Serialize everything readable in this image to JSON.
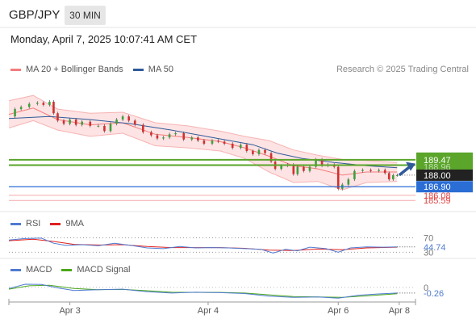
{
  "header": {
    "symbol": "GBP/JPY",
    "timeframe": "30 MIN",
    "datetime": "Monday, April 7, 2025 10:07:41 AM CET"
  },
  "credit": "Research © 2025 Trading Central",
  "colors": {
    "bollinger": "#f47c7c",
    "bollinger_fill": "#fde3e3",
    "ma50": "#2f5a9a",
    "price_up": "#3f9f3f",
    "price_down": "#d03030",
    "resistance": "#5aa52a",
    "support_blue": "#2a6dd4",
    "support_red": "#f06a6a",
    "rsi": "#4f7bd0",
    "rsi_ma": "#e02020",
    "macd": "#4f7bd0",
    "macd_signal": "#4ba71a"
  },
  "chart_data": [
    {
      "type": "line",
      "panel": "price",
      "legend": [
        "MA 20 + Bollinger Bands",
        "MA 50"
      ],
      "x_ticks": [
        "Apr 3",
        "Apr 4",
        "Apr 6",
        "Apr 8"
      ],
      "levels": {
        "resistance": [
          {
            "value": 189.47,
            "label": "189.47"
          },
          {
            "value": 188.96,
            "label": "188.96"
          }
        ],
        "current": {
          "value": 188.0,
          "label": "188.00"
        },
        "support": [
          {
            "value": 186.9,
            "label": "186.90"
          },
          {
            "value": 186.08,
            "label": "186.08"
          },
          {
            "value": 185.59,
            "label": "185.59"
          }
        ]
      },
      "ylim": [
        185.3,
        197.0
      ],
      "x_range": [
        0,
        100
      ],
      "x_tick_positions": [
        15,
        49,
        81,
        96
      ],
      "price_path": [
        [
          0,
          193.6
        ],
        [
          1.5,
          194.3
        ],
        [
          3,
          194.5
        ],
        [
          5,
          194.8
        ],
        [
          7,
          194.9
        ],
        [
          8.5,
          194.7
        ],
        [
          10,
          195.0
        ],
        [
          11,
          193.9
        ],
        [
          12,
          193.2
        ],
        [
          13.5,
          192.9
        ],
        [
          15,
          193.3
        ],
        [
          16.5,
          192.8
        ],
        [
          18,
          193.1
        ],
        [
          20,
          192.7
        ],
        [
          22,
          192.7
        ],
        [
          23.5,
          192.2
        ],
        [
          25,
          192.9
        ],
        [
          26.5,
          193.3
        ],
        [
          28,
          193.6
        ],
        [
          29.5,
          193.2
        ],
        [
          31,
          192.8
        ],
        [
          33,
          192.1
        ],
        [
          35,
          191.8
        ],
        [
          36.5,
          191.5
        ],
        [
          38,
          191.6
        ],
        [
          39.5,
          191.9
        ],
        [
          41,
          192.0
        ],
        [
          43,
          191.4
        ],
        [
          45,
          191.6
        ],
        [
          46.5,
          191.3
        ],
        [
          48,
          191.0
        ],
        [
          50,
          191.3
        ],
        [
          51.5,
          191.2
        ],
        [
          53,
          191.0
        ],
        [
          55,
          190.6
        ],
        [
          57,
          190.9
        ],
        [
          58.5,
          190.3
        ],
        [
          60,
          190.0
        ],
        [
          61.5,
          190.4
        ],
        [
          63,
          190.1
        ],
        [
          64.5,
          189.3
        ],
        [
          65.5,
          188.6
        ],
        [
          67,
          188.9
        ],
        [
          68.5,
          189.0
        ],
        [
          70,
          188.1
        ],
        [
          71,
          188.8
        ],
        [
          72.5,
          188.4
        ],
        [
          74,
          188.8
        ],
        [
          75.5,
          189.5
        ],
        [
          77,
          188.9
        ],
        [
          78.5,
          189.0
        ],
        [
          80,
          188.8
        ],
        [
          81,
          186.7
        ],
        [
          82,
          187.1
        ],
        [
          83.5,
          187.6
        ],
        [
          85,
          188.4
        ],
        [
          87,
          188.5
        ],
        [
          89,
          188.4
        ],
        [
          91,
          188.5
        ],
        [
          92.5,
          188.2
        ],
        [
          93.5,
          187.6
        ],
        [
          94.5,
          188.0
        ],
        [
          95.5,
          188.0
        ]
      ],
      "bb_upper": [
        [
          0,
          195.1
        ],
        [
          6,
          195.6
        ],
        [
          12,
          194.3
        ],
        [
          20,
          193.9
        ],
        [
          28,
          194.0
        ],
        [
          36,
          193.0
        ],
        [
          44,
          192.7
        ],
        [
          52,
          192.2
        ],
        [
          58,
          191.7
        ],
        [
          64,
          191.3
        ],
        [
          70,
          190.4
        ],
        [
          76,
          189.9
        ],
        [
          82,
          189.5
        ],
        [
          88,
          189.4
        ],
        [
          95.5,
          189.2
        ]
      ],
      "bb_lower": [
        [
          0,
          192.5
        ],
        [
          6,
          193.2
        ],
        [
          12,
          192.3
        ],
        [
          20,
          191.7
        ],
        [
          28,
          192.0
        ],
        [
          36,
          190.8
        ],
        [
          44,
          190.6
        ],
        [
          52,
          190.3
        ],
        [
          58,
          189.6
        ],
        [
          64,
          188.3
        ],
        [
          70,
          187.3
        ],
        [
          76,
          187.4
        ],
        [
          82,
          186.6
        ],
        [
          88,
          187.3
        ],
        [
          95.5,
          187.4
        ]
      ],
      "ma20": [
        [
          0,
          193.8
        ],
        [
          6,
          194.4
        ],
        [
          12,
          193.3
        ],
        [
          20,
          192.8
        ],
        [
          28,
          193.0
        ],
        [
          36,
          191.9
        ],
        [
          44,
          191.6
        ],
        [
          52,
          191.2
        ],
        [
          58,
          190.6
        ],
        [
          64,
          189.8
        ],
        [
          70,
          188.9
        ],
        [
          76,
          188.6
        ],
        [
          82,
          188.0
        ],
        [
          88,
          188.3
        ],
        [
          95.5,
          188.3
        ]
      ],
      "ma50": [
        [
          0,
          193.4
        ],
        [
          10,
          193.6
        ],
        [
          20,
          193.3
        ],
        [
          30,
          192.9
        ],
        [
          40,
          192.3
        ],
        [
          50,
          191.6
        ],
        [
          60,
          190.9
        ],
        [
          66,
          190.1
        ],
        [
          72,
          189.6
        ],
        [
          80,
          189.2
        ],
        [
          88,
          188.9
        ],
        [
          95.5,
          188.7
        ]
      ],
      "forecast": [
        [
          96,
          188.0
        ],
        [
          100,
          189.1
        ]
      ]
    },
    {
      "type": "line",
      "panel": "rsi",
      "legend": [
        "RSI",
        "9MA"
      ],
      "levels": [
        {
          "value": 70,
          "label": "70"
        },
        {
          "value": 30,
          "label": "30"
        }
      ],
      "current": {
        "value": 44.74,
        "label": "44.74"
      },
      "ylim": [
        22,
        80
      ],
      "rsi": [
        [
          0,
          64
        ],
        [
          4,
          68
        ],
        [
          8,
          69
        ],
        [
          11,
          55
        ],
        [
          14,
          49
        ],
        [
          18,
          51
        ],
        [
          22,
          48
        ],
        [
          26,
          55
        ],
        [
          30,
          49
        ],
        [
          34,
          42
        ],
        [
          38,
          40
        ],
        [
          42,
          46
        ],
        [
          46,
          42
        ],
        [
          50,
          43
        ],
        [
          54,
          42
        ],
        [
          58,
          40
        ],
        [
          62,
          38
        ],
        [
          65,
          28
        ],
        [
          68,
          38
        ],
        [
          71,
          34
        ],
        [
          74,
          44
        ],
        [
          78,
          40
        ],
        [
          81,
          30
        ],
        [
          84,
          42
        ],
        [
          88,
          45
        ],
        [
          92,
          44
        ],
        [
          95.5,
          44.74
        ]
      ],
      "rsi_ma": [
        [
          0,
          62
        ],
        [
          6,
          66
        ],
        [
          11,
          60
        ],
        [
          16,
          52
        ],
        [
          22,
          50
        ],
        [
          28,
          51
        ],
        [
          34,
          46
        ],
        [
          40,
          43
        ],
        [
          46,
          43
        ],
        [
          52,
          43
        ],
        [
          58,
          41
        ],
        [
          64,
          36
        ],
        [
          70,
          35
        ],
        [
          76,
          39
        ],
        [
          82,
          37
        ],
        [
          88,
          42
        ],
        [
          95.5,
          44
        ]
      ]
    },
    {
      "type": "line",
      "panel": "macd",
      "legend": [
        "MACD",
        "MACD Signal"
      ],
      "level": {
        "value": 0,
        "label": "0"
      },
      "current": {
        "value": -0.26,
        "label": "-0.26"
      },
      "ylim": [
        -0.6,
        0.3
      ],
      "macd": [
        [
          0,
          -0.05
        ],
        [
          4,
          0.15
        ],
        [
          8,
          0.14
        ],
        [
          12,
          -0.02
        ],
        [
          16,
          -0.14
        ],
        [
          22,
          -0.1
        ],
        [
          28,
          -0.08
        ],
        [
          34,
          -0.2
        ],
        [
          40,
          -0.26
        ],
        [
          46,
          -0.22
        ],
        [
          52,
          -0.24
        ],
        [
          58,
          -0.28
        ],
        [
          64,
          -0.4
        ],
        [
          70,
          -0.46
        ],
        [
          76,
          -0.44
        ],
        [
          81,
          -0.5
        ],
        [
          86,
          -0.36
        ],
        [
          91,
          -0.3
        ],
        [
          95.5,
          -0.26
        ]
      ],
      "signal": [
        [
          0,
          -0.08
        ],
        [
          5,
          0.08
        ],
        [
          10,
          0.1
        ],
        [
          16,
          -0.05
        ],
        [
          22,
          -0.1
        ],
        [
          28,
          -0.09
        ],
        [
          34,
          -0.15
        ],
        [
          40,
          -0.22
        ],
        [
          46,
          -0.23
        ],
        [
          52,
          -0.23
        ],
        [
          58,
          -0.26
        ],
        [
          64,
          -0.34
        ],
        [
          70,
          -0.42
        ],
        [
          76,
          -0.44
        ],
        [
          82,
          -0.46
        ],
        [
          88,
          -0.39
        ],
        [
          95.5,
          -0.29
        ]
      ]
    }
  ]
}
